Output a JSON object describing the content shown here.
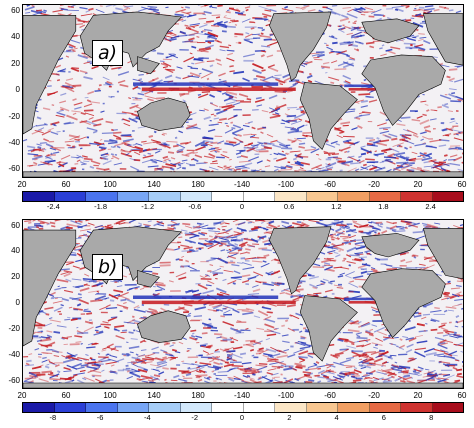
{
  "panels": [
    {
      "label": "a)",
      "y_ticks": [
        "60",
        "40",
        "20",
        "0",
        "-20",
        "-40",
        "-60"
      ],
      "x_ticks": [
        "20",
        "60",
        "100",
        "140",
        "180",
        "-140",
        "-100",
        "-60",
        "-20",
        "20",
        "60"
      ],
      "colorbar_ticks": [
        "-2.4",
        "-1.8",
        "-1.2",
        "-0.6",
        "0",
        "0.6",
        "1.2",
        "1.8",
        "2.4"
      ],
      "colorbar_range": [
        -2.8,
        2.8
      ]
    },
    {
      "label": "b)",
      "y_ticks": [
        "60",
        "40",
        "20",
        "0",
        "-20",
        "-40",
        "-60"
      ],
      "x_ticks": [
        "20",
        "60",
        "100",
        "140",
        "180",
        "-140",
        "-100",
        "-60",
        "-20",
        "20",
        "60"
      ],
      "colorbar_ticks": [
        "-8",
        "-6",
        "-4",
        "-2",
        "0",
        "2",
        "4",
        "6",
        "8"
      ],
      "colorbar_range": [
        -9.3,
        9.3
      ]
    }
  ],
  "colorbar_colors": [
    "#1b1aa8",
    "#2b3fd6",
    "#4b74ee",
    "#78a6f5",
    "#a6cdf7",
    "#d2e8fb",
    "#ffffff",
    "#ffffff",
    "#fbe6c6",
    "#f8c791",
    "#f19f63",
    "#e66a45",
    "#cf3330",
    "#a80d1c"
  ],
  "colors": {
    "land": "#a9a9a9",
    "ocean": "#f3f1f4",
    "positive": "#c4161c",
    "negative": "#2133b8"
  }
}
